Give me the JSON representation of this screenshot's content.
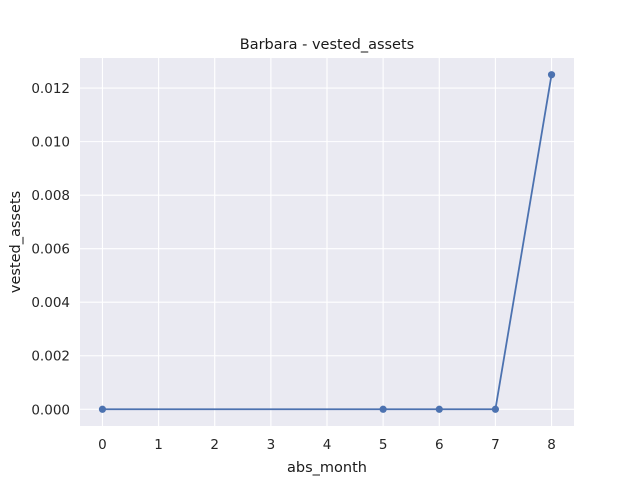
{
  "chart_data": {
    "type": "line",
    "title": "Barbara - vested_assets",
    "xlabel": "abs_month",
    "ylabel": "vested_assets",
    "x": [
      0,
      5,
      6,
      7,
      8
    ],
    "series": [
      {
        "values": [
          0.0,
          0.0,
          0.0,
          0.0,
          0.0125
        ]
      }
    ],
    "xticks": [
      0,
      1,
      2,
      3,
      4,
      5,
      6,
      7,
      8
    ],
    "xtick_labels": [
      "0",
      "1",
      "2",
      "3",
      "4",
      "5",
      "6",
      "7",
      "8"
    ],
    "yticks": [
      0.0,
      0.002,
      0.004,
      0.006,
      0.008,
      0.01,
      0.012
    ],
    "ytick_labels": [
      "0.000",
      "0.002",
      "0.004",
      "0.006",
      "0.008",
      "0.010",
      "0.012"
    ],
    "xlim": [
      -0.4,
      8.4
    ],
    "ylim": [
      -0.000625,
      0.013125
    ],
    "grid": true,
    "colors": {
      "line": "#4c72b0",
      "background": "#eaeaf2",
      "grid": "#ffffff"
    }
  }
}
